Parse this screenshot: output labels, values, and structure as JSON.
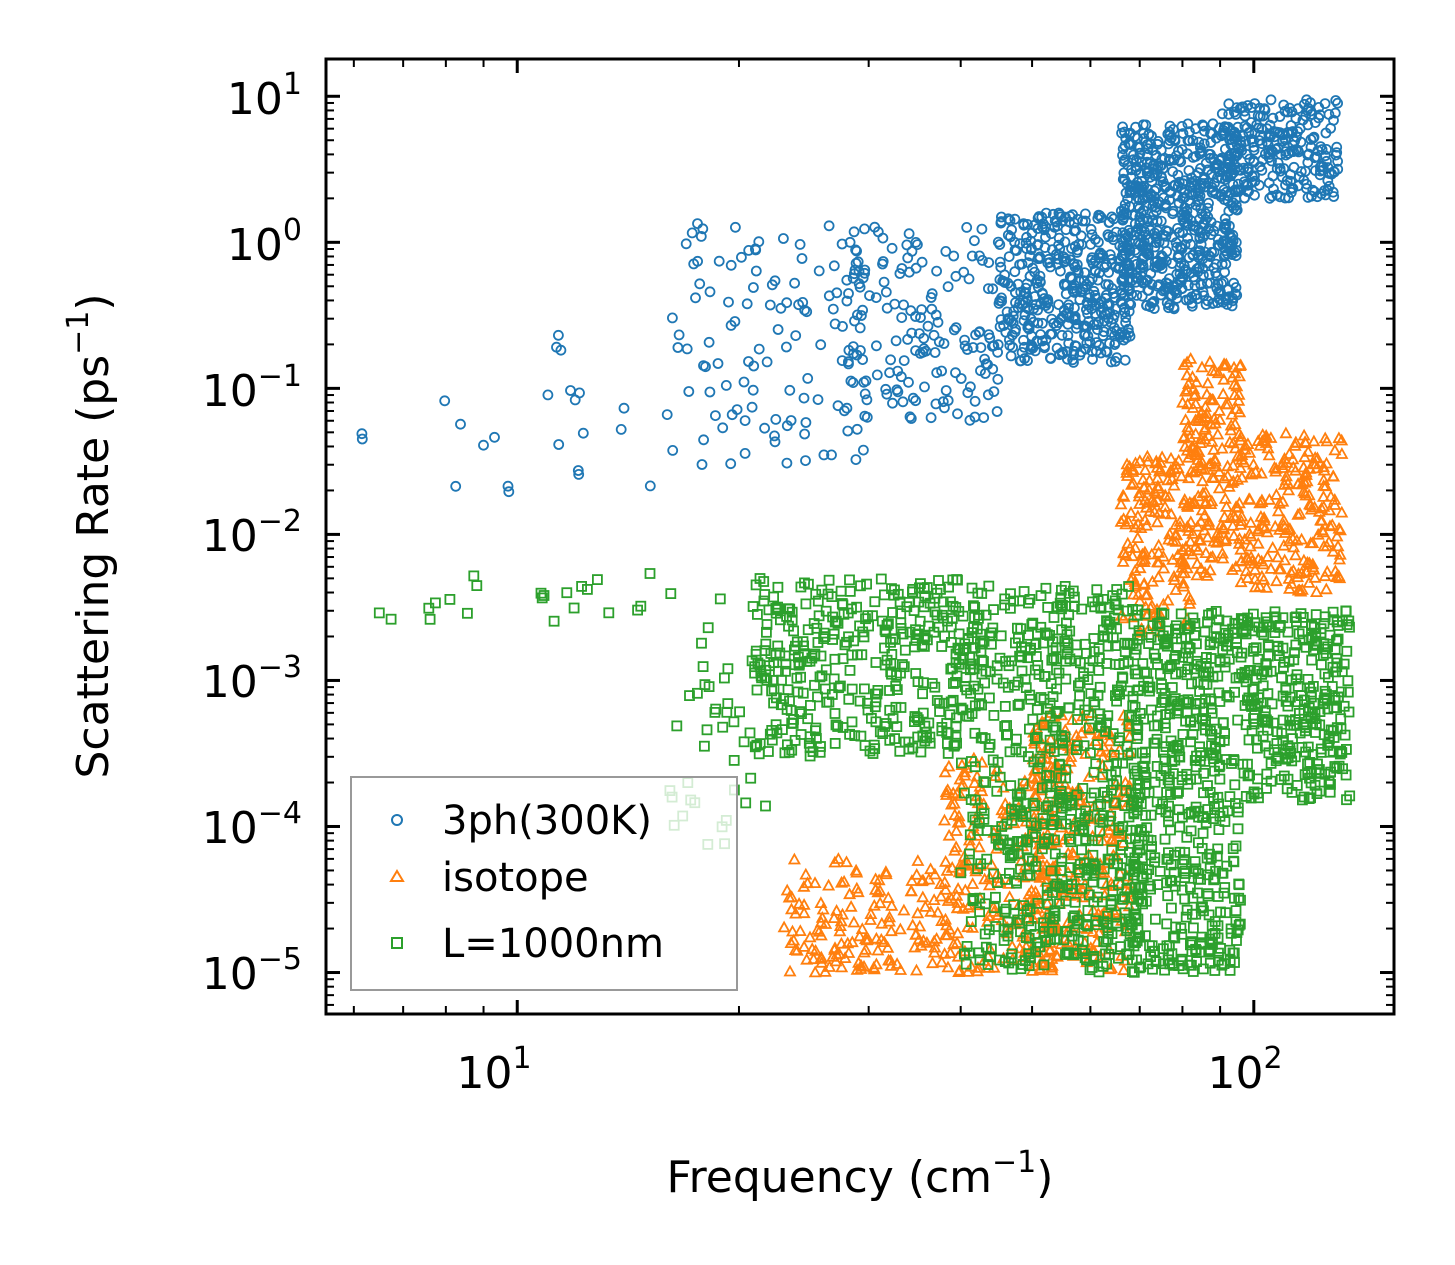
{
  "chart_data": {
    "type": "scatter",
    "xscale": "log",
    "yscale": "log",
    "xlim": [
      5.5,
      155
    ],
    "ylim": [
      5.2e-06,
      18
    ],
    "xlabel": {
      "main": "Frequency (cm",
      "sup": "−1",
      "close": ")"
    },
    "ylabel": {
      "main": "Scattering Rate (ps",
      "sup": "−1",
      "close": ")"
    },
    "x_ticks": [
      {
        "value": 10,
        "base": "10",
        "exp": "1"
      },
      {
        "value": 100,
        "base": "10",
        "exp": "2"
      }
    ],
    "y_ticks": [
      {
        "value": 10,
        "base": "10",
        "exp": "1"
      },
      {
        "value": 1,
        "base": "10",
        "exp": "0"
      },
      {
        "value": 0.1,
        "base": "10",
        "exp": "−1"
      },
      {
        "value": 0.01,
        "base": "10",
        "exp": "−2"
      },
      {
        "value": 0.001,
        "base": "10",
        "exp": "−3"
      },
      {
        "value": 0.0001,
        "base": "10",
        "exp": "−4"
      },
      {
        "value": 1e-05,
        "base": "10",
        "exp": "−5"
      }
    ],
    "legend_position": "lower-left",
    "series": [
      {
        "name": "3ph(300K)",
        "marker": "circle",
        "color": "#1f77b4",
        "clusters": [
          {
            "x": [
              6.1,
              6.2
            ],
            "y": [
              0.04,
              0.05
            ],
            "n": 2
          },
          {
            "x": [
              7.5,
              16
            ],
            "y": [
              0.015,
              0.25
            ],
            "n": 22
          },
          {
            "x": [
              16,
              30
            ],
            "y": [
              0.03,
              1.4
            ],
            "n": 110
          },
          {
            "x": [
              28,
              45
            ],
            "y": [
              0.06,
              1.3
            ],
            "n": 160
          },
          {
            "x": [
              45,
              68
            ],
            "y": [
              0.15,
              1.6
            ],
            "n": 420
          },
          {
            "x": [
              66,
              95
            ],
            "y": [
              0.35,
              6.5
            ],
            "n": 600
          },
          {
            "x": [
              90,
              130
            ],
            "y": [
              2,
              9.5
            ],
            "n": 260
          }
        ]
      },
      {
        "name": "isotope",
        "marker": "triangle",
        "color": "#ff7f0e",
        "clusters": [
          {
            "x": [
              23,
              40
            ],
            "y": [
              1e-05,
              6e-05
            ],
            "n": 170
          },
          {
            "x": [
              38,
              55
            ],
            "y": [
              1e-05,
              0.0003
            ],
            "n": 220
          },
          {
            "x": [
              50,
              68
            ],
            "y": [
              1e-05,
              0.0006
            ],
            "n": 260
          },
          {
            "x": [
              66,
              82
            ],
            "y": [
              0.002,
              0.035
            ],
            "n": 170
          },
          {
            "x": [
              80,
              96
            ],
            "y": [
              0.005,
              0.16
            ],
            "n": 200
          },
          {
            "x": [
              96,
              132
            ],
            "y": [
              0.004,
              0.05
            ],
            "n": 220
          }
        ]
      },
      {
        "name": "L=1000nm",
        "marker": "square",
        "color": "#2ca02c",
        "clusters": [
          {
            "x": [
              6.1,
              16
            ],
            "y": [
              0.0024,
              0.0055
            ],
            "n": 22
          },
          {
            "x": [
              16,
              22
            ],
            "y": [
              7e-05,
              0.005
            ],
            "n": 45
          },
          {
            "x": [
              21,
              40
            ],
            "y": [
              0.0003,
              0.005
            ],
            "n": 360
          },
          {
            "x": [
              40,
              70
            ],
            "y": [
              1e-05,
              0.0045
            ],
            "n": 720
          },
          {
            "x": [
              68,
              96
            ],
            "y": [
              1e-05,
              0.003
            ],
            "n": 520
          },
          {
            "x": [
              96,
              135
            ],
            "y": [
              0.00015,
              0.003
            ],
            "n": 320
          }
        ]
      }
    ]
  }
}
